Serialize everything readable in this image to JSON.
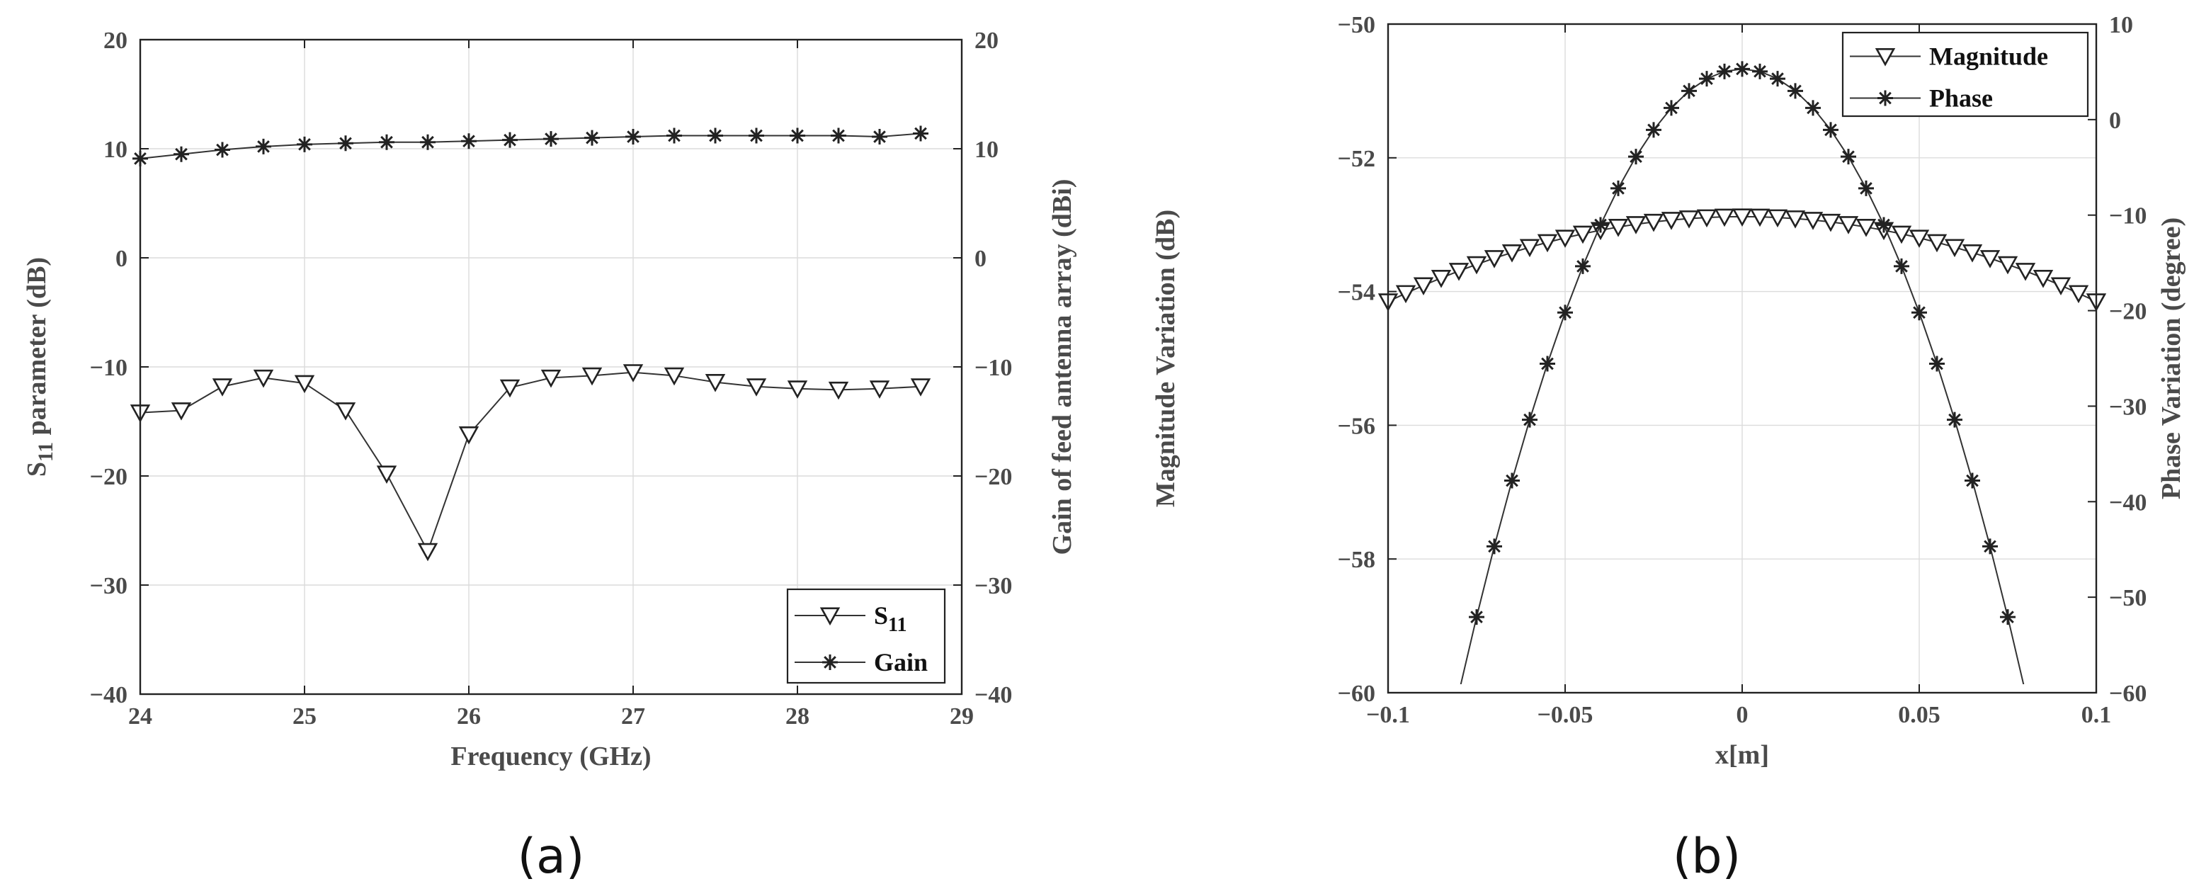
{
  "figure_captions": [
    "(a)",
    "(b)"
  ],
  "chart_data": [
    {
      "type": "line",
      "panel": "(a)",
      "xlabel": "Frequency (GHz)",
      "ylabel_left": {
        "base": "S",
        "sub": "11",
        "rest": " parameter (dB)"
      },
      "ylabel_right": "Gain of feed antenna array (dBi)",
      "xlim": [
        24,
        29
      ],
      "ylim_left": [
        -40,
        20
      ],
      "ylim_right": [
        -40,
        20
      ],
      "xticks": [
        24,
        25,
        26,
        27,
        28,
        29
      ],
      "yticks_left": [
        -40,
        -30,
        -20,
        -10,
        0,
        10,
        20
      ],
      "yticks_right": [
        -40,
        -30,
        -20,
        -10,
        0,
        10,
        20
      ],
      "grid": true,
      "legend_position": "bottom-right",
      "legend": [
        {
          "base": "S",
          "sub": "11",
          "marker": "triangle-down"
        },
        {
          "base": "Gain",
          "sub": "",
          "marker": "asterisk"
        }
      ],
      "series": [
        {
          "name": "S11",
          "marker": "triangle-down",
          "axis": "left",
          "x": [
            24.0,
            24.25,
            24.5,
            24.75,
            25.0,
            25.25,
            25.5,
            25.75,
            26.0,
            26.25,
            26.5,
            26.75,
            27.0,
            27.25,
            27.5,
            27.75,
            28.0,
            28.25,
            28.5,
            28.75
          ],
          "y": [
            -14.2,
            -14.0,
            -11.8,
            -11.0,
            -11.5,
            -14.0,
            -19.8,
            -26.9,
            -16.2,
            -11.9,
            -11.0,
            -10.8,
            -10.5,
            -10.8,
            -11.4,
            -11.8,
            -12.0,
            -12.1,
            -12.0,
            -11.8
          ]
        },
        {
          "name": "Gain",
          "marker": "asterisk",
          "axis": "right",
          "x": [
            24.0,
            24.25,
            24.5,
            24.75,
            25.0,
            25.25,
            25.5,
            25.75,
            26.0,
            26.25,
            26.5,
            26.75,
            27.0,
            27.25,
            27.5,
            27.75,
            28.0,
            28.25,
            28.5,
            28.75
          ],
          "y": [
            9.1,
            9.5,
            9.9,
            10.2,
            10.4,
            10.5,
            10.6,
            10.6,
            10.7,
            10.8,
            10.9,
            11.0,
            11.1,
            11.2,
            11.2,
            11.2,
            11.2,
            11.2,
            11.1,
            11.4
          ]
        }
      ]
    },
    {
      "type": "line",
      "panel": "(b)",
      "xlabel": "x[m]",
      "ylabel_left": "Magnitude Variation (dB)",
      "ylabel_right": "Phase Variation (degree)",
      "xlim": [
        -0.1,
        0.1
      ],
      "ylim_left": [
        -60,
        -50
      ],
      "ylim_right": [
        -60,
        10
      ],
      "xticks": [
        "-0.1",
        "-0.05",
        "0",
        "0.05",
        "0.1"
      ],
      "yticks_left": [
        -60,
        -58,
        -56,
        -54,
        -52,
        -50
      ],
      "yticks_right": [
        -60,
        -50,
        -40,
        -30,
        -20,
        -10,
        0,
        10
      ],
      "grid": true,
      "legend_position": "top-right",
      "legend": [
        {
          "base": "Magnitude",
          "sub": "",
          "marker": "triangle-down"
        },
        {
          "base": "Phase",
          "sub": "",
          "marker": "asterisk"
        }
      ],
      "series": [
        {
          "name": "Magnitude",
          "marker": "triangle-down",
          "axis": "left",
          "model": "quadratic",
          "x_range": [
            -0.1,
            0.1
          ],
          "n_points": 41,
          "peak": -52.88,
          "curvature": 127
        },
        {
          "name": "Phase",
          "marker": "asterisk",
          "axis": "right",
          "model": "quadratic",
          "x_range": [
            -0.08,
            0.08
          ],
          "n_points": 33,
          "peak": 5.3,
          "curvature": 10200,
          "extends_to": [
            -0.0815,
            0.0815
          ]
        }
      ]
    }
  ]
}
